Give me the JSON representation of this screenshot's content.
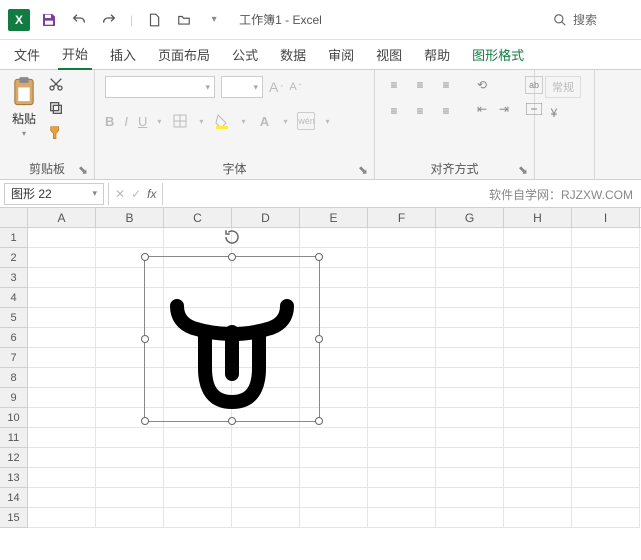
{
  "app": {
    "name": "Excel",
    "doc_title": "工作簿1 - Excel",
    "search_placeholder": "搜索"
  },
  "qat": {
    "save": "save",
    "undo": "undo",
    "redo": "redo",
    "new": "new",
    "open": "open"
  },
  "tabs": [
    "文件",
    "开始",
    "插入",
    "页面布局",
    "公式",
    "数据",
    "审阅",
    "视图",
    "帮助",
    "图形格式"
  ],
  "active_tab": 1,
  "ribbon": {
    "clipboard": {
      "label": "剪贴板",
      "paste": "粘贴"
    },
    "font": {
      "label": "字体",
      "bold": "B",
      "italic": "I",
      "underline": "U",
      "wen": "wén"
    },
    "align": {
      "label": "对齐方式",
      "wrap": "ab",
      "merge": "merge"
    },
    "number": {
      "label": "",
      "general": "常规"
    }
  },
  "namebox": "图形 22",
  "fx": "fx",
  "watermark": "软件自学网：RJZXW.COM",
  "columns": [
    "A",
    "B",
    "C",
    "D",
    "E",
    "F",
    "G",
    "H",
    "I"
  ],
  "row_count": 15,
  "shape": {
    "type": "icon-tongue-face",
    "stroke": "#000000",
    "stroke_width": 14,
    "selection": {
      "handles": 8,
      "rotation_handle": true
    }
  },
  "colors": {
    "brand": "#107c41",
    "border": "#d0d0d0",
    "grid": "#e5e5e5",
    "header_bg": "#f0f0f0"
  }
}
